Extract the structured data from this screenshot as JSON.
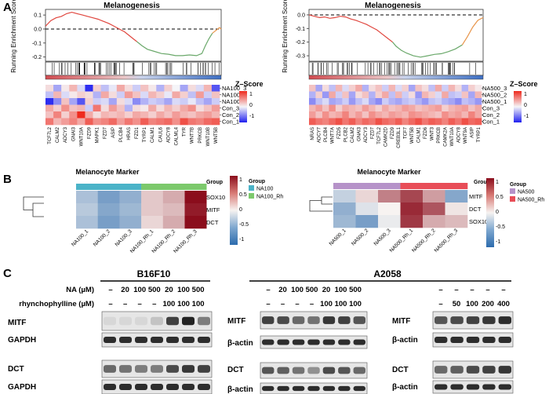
{
  "panels": {
    "A": {
      "label": "A",
      "plots": [
        {
          "title": "Melanogenesis",
          "ylabel": "Running Enrichment Score",
          "yticks": [
            "0.1",
            "0.0",
            "-0.1",
            "-0.2"
          ],
          "yticks_values": [
            0.1,
            0.0,
            -0.1,
            -0.2
          ],
          "ylim": [
            -0.23,
            0.14
          ],
          "curve_red": [
            [
              0,
              0.02
            ],
            [
              0.03,
              0.06
            ],
            [
              0.06,
              0.08
            ],
            [
              0.09,
              0.09
            ],
            [
              0.12,
              0.11
            ],
            [
              0.15,
              0.12
            ],
            [
              0.18,
              0.11
            ],
            [
              0.21,
              0.1
            ],
            [
              0.24,
              0.09
            ],
            [
              0.27,
              0.08
            ],
            [
              0.3,
              0.07
            ],
            [
              0.33,
              0.055
            ],
            [
              0.36,
              0.04
            ],
            [
              0.39,
              0.02
            ],
            [
              0.42,
              0.0
            ],
            [
              0.45,
              -0.02
            ],
            [
              0.48,
              -0.05
            ],
            [
              0.5,
              -0.07
            ],
            [
              0.52,
              -0.09
            ]
          ],
          "curve_green": [
            [
              0.52,
              -0.09
            ],
            [
              0.55,
              -0.12
            ],
            [
              0.58,
              -0.145
            ],
            [
              0.62,
              -0.16
            ],
            [
              0.66,
              -0.175
            ],
            [
              0.7,
              -0.18
            ],
            [
              0.74,
              -0.19
            ],
            [
              0.78,
              -0.19
            ],
            [
              0.82,
              -0.185
            ],
            [
              0.86,
              -0.19
            ],
            [
              0.89,
              -0.175
            ],
            [
              0.91,
              -0.12
            ],
            [
              0.93,
              -0.07
            ],
            [
              0.95,
              -0.03
            ]
          ],
          "curve_orange": [
            [
              0.95,
              -0.03
            ],
            [
              0.97,
              -0.01
            ],
            [
              0.99,
              0.01
            ],
            [
              1.0,
              0.0
            ]
          ],
          "heatmap_title": "Z–Score",
          "legend_ticks": [
            "1",
            "0",
            "-1"
          ],
          "rows": [
            "NA100_3",
            "NA100_2",
            "NA100_1",
            "Con_3",
            "Con_2",
            "Con_1"
          ],
          "genes": [
            "TCF7L2",
            "CALM2",
            "ADCY3",
            "GNAI3",
            "WNT10A",
            "FZD9",
            "MAPK1",
            "FZD7",
            "ASIP",
            "PLCB4",
            "HRAS",
            "FZD1",
            "TYRP1",
            "CALM1",
            "CAUL6",
            "ADCY8",
            "CALML4",
            "TYR",
            "WNT7B",
            "PRKCB",
            "WNT10B",
            "WNT5B"
          ],
          "matrix": [
            [
              0.2,
              -0.6,
              0.1,
              0.5,
              -0.2,
              -1.5,
              0.3,
              -0.4,
              -0.1,
              0.6,
              0.2,
              -0.3,
              0.4,
              0.1,
              -0.5,
              0.3,
              0.0,
              -0.6,
              0.2,
              -0.2,
              0.5,
              -1.2
            ],
            [
              -0.4,
              0.5,
              -0.2,
              0.1,
              0.3,
              0.2,
              -0.5,
              0.6,
              0.2,
              -0.3,
              0.7,
              0.4,
              -0.2,
              0.5,
              0.3,
              -0.1,
              0.6,
              0.3,
              -0.4,
              0.7,
              -0.3,
              0.4
            ],
            [
              -1.5,
              -0.8,
              0.4,
              -0.6,
              -1.2,
              0.3,
              -0.3,
              -0.2,
              -0.6,
              0.2,
              -0.2,
              -0.8,
              -0.5,
              -0.3,
              -0.4,
              -0.6,
              -0.2,
              -0.3,
              -0.1,
              -0.4,
              -0.6,
              -0.3
            ],
            [
              0.6,
              0.3,
              0.8,
              0.4,
              0.5,
              -0.3,
              1.0,
              0.2,
              0.7,
              0.4,
              -0.5,
              0.2,
              0.1,
              0.6,
              0.2,
              0.5,
              0.3,
              0.6,
              0.8,
              0.2,
              0.4,
              0.7
            ],
            [
              0.4,
              0.9,
              0.3,
              0.8,
              1.6,
              0.6,
              0.2,
              0.5,
              0.4,
              0.5,
              0.3,
              0.6,
              0.5,
              0.3,
              0.6,
              0.4,
              0.7,
              0.5,
              0.4,
              0.6,
              0.7,
              0.5
            ],
            [
              1.0,
              0.5,
              0.7,
              0.9,
              0.6,
              1.2,
              0.8,
              0.9,
              1.1,
              0.7,
              1.0,
              0.8,
              1.2,
              0.9,
              1.0,
              1.1,
              0.8,
              1.3,
              1.0,
              0.9,
              1.1,
              1.2
            ]
          ]
        },
        {
          "title": "Melanogenesis",
          "ylabel": "Running Enrichment Score",
          "yticks": [
            "0.0",
            "-0.1",
            "-0.2",
            "-0.3"
          ],
          "yticks_values": [
            0.0,
            -0.1,
            -0.2,
            -0.3
          ],
          "ylim": [
            -0.34,
            0.04
          ],
          "curve_red": [
            [
              0,
              0.0
            ],
            [
              0.03,
              -0.01
            ],
            [
              0.06,
              -0.02
            ],
            [
              0.09,
              -0.015
            ],
            [
              0.12,
              -0.025
            ],
            [
              0.15,
              -0.02
            ],
            [
              0.18,
              -0.01
            ],
            [
              0.21,
              -0.015
            ],
            [
              0.24,
              -0.03
            ],
            [
              0.27,
              -0.04
            ],
            [
              0.3,
              -0.055
            ],
            [
              0.33,
              -0.07
            ],
            [
              0.36,
              -0.09
            ],
            [
              0.39,
              -0.11
            ],
            [
              0.42,
              -0.14
            ],
            [
              0.45,
              -0.17
            ],
            [
              0.48,
              -0.2
            ]
          ],
          "curve_green": [
            [
              0.48,
              -0.2
            ],
            [
              0.5,
              -0.23
            ],
            [
              0.53,
              -0.26
            ],
            [
              0.56,
              -0.28
            ],
            [
              0.6,
              -0.3
            ],
            [
              0.64,
              -0.31
            ],
            [
              0.68,
              -0.3
            ],
            [
              0.72,
              -0.29
            ],
            [
              0.76,
              -0.285
            ],
            [
              0.8,
              -0.27
            ],
            [
              0.84,
              -0.25
            ],
            [
              0.88,
              -0.22
            ]
          ],
          "curve_orange": [
            [
              0.88,
              -0.22
            ],
            [
              0.91,
              -0.16
            ],
            [
              0.94,
              -0.09
            ],
            [
              0.97,
              -0.04
            ],
            [
              1.0,
              -0.02
            ]
          ],
          "heatmap_title": "Z–Score",
          "legend_ticks": [
            "1",
            "0",
            "-1"
          ],
          "rows": [
            "NA500_3",
            "NA500_2",
            "NA500_1",
            "Con_3",
            "Con_2",
            "Con_1"
          ],
          "genes": [
            "NRAS",
            "ADCY7",
            "PLCB4",
            "WNT7A",
            "FZD5",
            "PLCB2",
            "CALM2",
            "GNAI3",
            "ADCY3",
            "FZD7",
            "TCF7L2",
            "CAMK2D",
            "FZD9",
            "CREB3L1",
            "TCF7",
            "WNT5B",
            "CALM1",
            "FZD6",
            "WNT3",
            "PRKCB",
            "CAMK2A",
            "WNT10A",
            "ADCY8",
            "WNT9A",
            "ASIP",
            "TYRP1"
          ],
          "matrix": [
            [
              0.4,
              -0.6,
              0.2,
              -0.4,
              0.5,
              -0.2,
              0.3,
              0.6,
              -0.5,
              0.2,
              0.4,
              -0.3,
              0.5,
              -0.2,
              0.3,
              -0.6,
              0.4,
              0.2,
              -0.4,
              0.6,
              -0.3,
              0.5,
              0.2,
              -0.5,
              0.3,
              0.1
            ],
            [
              -0.5,
              0.3,
              -0.7,
              0.6,
              -0.3,
              0.4,
              -0.6,
              0.2,
              0.4,
              -0.5,
              0.3,
              0.6,
              -0.4,
              0.5,
              -0.3,
              0.2,
              -0.7,
              0.5,
              0.3,
              -0.2,
              0.6,
              -0.4,
              -0.3,
              0.4,
              -0.6,
              0.5
            ],
            [
              -0.8,
              -0.4,
              -0.2,
              -0.6,
              -0.5,
              -0.3,
              -0.7,
              -0.4,
              -0.2,
              -0.6,
              -0.8,
              -0.3,
              -0.5,
              -0.6,
              -0.4,
              -0.3,
              -0.5,
              -0.7,
              -0.4,
              -0.3,
              -0.5,
              -0.6,
              -0.8,
              -0.4,
              -0.5,
              -0.7
            ],
            [
              0.5,
              0.7,
              0.4,
              0.8,
              0.3,
              0.6,
              0.5,
              0.4,
              0.7,
              0.5,
              0.3,
              0.6,
              0.4,
              0.5,
              0.7,
              0.6,
              0.4,
              0.5,
              0.6,
              0.7,
              0.3,
              0.5,
              0.6,
              0.7,
              0.4,
              0.6
            ],
            [
              0.7,
              0.4,
              0.8,
              0.5,
              0.6,
              0.9,
              0.5,
              0.7,
              0.4,
              0.8,
              0.6,
              0.5,
              0.7,
              0.6,
              0.5,
              0.8,
              0.7,
              0.6,
              0.5,
              0.4,
              0.8,
              0.6,
              0.7,
              0.5,
              0.9,
              0.6
            ],
            [
              1.2,
              1.0,
              0.9,
              1.1,
              1.3,
              1.0,
              1.2,
              0.9,
              1.1,
              1.0,
              1.3,
              1.1,
              1.0,
              1.2,
              0.9,
              1.1,
              1.3,
              1.0,
              1.2,
              1.1,
              0.9,
              1.2,
              1.0,
              1.3,
              1.1,
              1.2
            ]
          ]
        }
      ]
    },
    "B": {
      "label": "B",
      "heatmaps": [
        {
          "title": "Melanocyte Marker",
          "group_header": "Group",
          "legend_title": "Group",
          "groups": [
            {
              "name": "NA100",
              "color": "#4bb3c8"
            },
            {
              "name": "NA100_Rh",
              "color": "#7cc96c"
            }
          ],
          "genes": [
            "SOX10",
            "MITF",
            "DCT"
          ],
          "samples": [
            "NA100_1",
            "NA100_2",
            "NA100_3",
            "NA100_Rh_1",
            "NA100_Rh_2",
            "NA100_Rh_3"
          ],
          "sample_groups": [
            0,
            0,
            0,
            1,
            1,
            1
          ],
          "scale_ticks": [
            "1",
            "0.5",
            "0",
            "-0.5",
            "-1"
          ],
          "matrix": [
            [
              -0.6,
              -1.0,
              -0.8,
              0.3,
              0.5,
              1.6
            ],
            [
              -0.5,
              -0.9,
              -0.7,
              0.3,
              0.4,
              1.5
            ],
            [
              -0.6,
              -1.0,
              -0.8,
              0.2,
              0.5,
              1.6
            ]
          ]
        },
        {
          "title": "Melanocyte Marker",
          "group_header": "Group",
          "legend_title": "Group",
          "groups": [
            {
              "name": "NA500",
              "color": "#b692c9"
            },
            {
              "name": "NA500_Rh",
              "color": "#e84d57"
            }
          ],
          "genes": [
            "MITF",
            "DCT",
            "SOX10"
          ],
          "samples": [
            "NA500_1",
            "NA500_2",
            "NA500_3",
            "NA500_Rh_1",
            "NA500_Rh_2",
            "NA500_Rh_3"
          ],
          "sample_groups": [
            0,
            0,
            0,
            1,
            1,
            1
          ],
          "scale_ticks": [
            "1",
            "0.5",
            "0",
            "-0.5",
            "-1"
          ],
          "matrix": [
            [
              -0.4,
              0.2,
              0.8,
              1.2,
              0.6,
              -0.9
            ],
            [
              -0.8,
              -0.2,
              0.0,
              1.4,
              1.1,
              0.1
            ],
            [
              -0.7,
              -1.0,
              -0.1,
              1.3,
              0.5,
              0.4
            ]
          ]
        }
      ]
    },
    "C": {
      "label": "C",
      "cells": [
        {
          "title": "B16F10"
        },
        {
          "title": "A2058"
        }
      ],
      "conditions": {
        "na_label": "NA (µM)",
        "rh_label": "rhynchophylline (µM)",
        "b16_na": [
          "–",
          "20",
          "100",
          "500",
          "20",
          "100",
          "500"
        ],
        "b16_rh": [
          "–",
          "–",
          "–",
          "–",
          "100",
          "100",
          "100"
        ],
        "a2058_na": [
          "–",
          "20",
          "100",
          "500",
          "20",
          "100",
          "500"
        ],
        "a2058_rh": [
          "–",
          "–",
          "–",
          "–",
          "100",
          "100",
          "100"
        ],
        "a2058b_na": [
          "–",
          "–",
          "–",
          "–",
          "–"
        ],
        "a2058b_rh": [
          "–",
          "50",
          "100",
          "200",
          "400"
        ]
      },
      "blot_labels": {
        "mitf": "MITF",
        "gapdh": "GAPDH",
        "dct": "DCT",
        "bactin": "β-actin"
      },
      "band_intensity": {
        "b16_mitf": [
          0.05,
          0.05,
          0.05,
          0.15,
          0.8,
          0.95,
          0.5
        ],
        "b16_gapdh": [
          0.9,
          0.9,
          0.9,
          0.9,
          0.9,
          0.9,
          0.9
        ],
        "b16_dct": [
          0.6,
          0.55,
          0.5,
          0.5,
          0.75,
          0.85,
          0.8
        ],
        "b16_gapdh2": [
          0.9,
          0.9,
          0.9,
          0.9,
          0.9,
          0.9,
          0.9
        ],
        "a_mitf": [
          0.8,
          0.75,
          0.6,
          0.55,
          0.85,
          0.8,
          0.7
        ],
        "a_bactin": [
          0.9,
          0.9,
          0.9,
          0.9,
          0.9,
          0.9,
          0.9
        ],
        "a_dct": [
          0.7,
          0.65,
          0.55,
          0.4,
          0.75,
          0.7,
          0.6
        ],
        "a_bactin2": [
          0.9,
          0.9,
          0.9,
          0.9,
          0.9,
          0.9,
          0.9
        ],
        "ab_mitf": [
          0.7,
          0.75,
          0.8,
          0.85,
          0.9
        ],
        "ab_bactin": [
          0.9,
          0.9,
          0.9,
          0.9,
          0.9
        ],
        "ab_dct": [
          0.6,
          0.65,
          0.75,
          0.8,
          0.85
        ],
        "ab_bactin2": [
          0.9,
          0.9,
          0.9,
          0.9,
          0.9
        ]
      }
    }
  }
}
